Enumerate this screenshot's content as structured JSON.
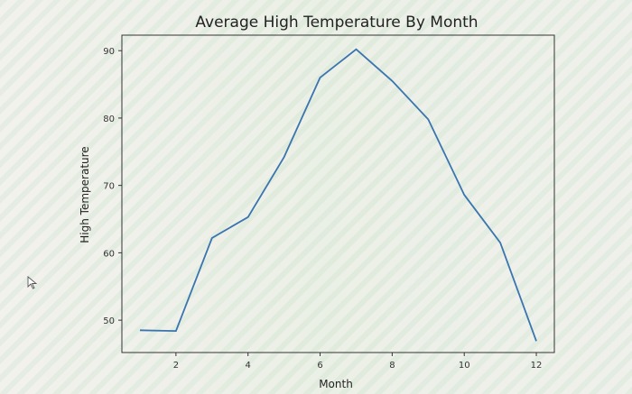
{
  "chart_data": {
    "type": "line",
    "title": "Average High Temperature By Month",
    "xlabel": "Month",
    "ylabel": "High Temperature",
    "x": [
      1,
      2,
      3,
      4,
      5,
      6,
      7,
      8,
      9,
      10,
      11,
      12
    ],
    "series": [
      {
        "values": [
          48.5,
          48.4,
          62.2,
          65.3,
          74.2,
          86.0,
          90.2,
          85.5,
          79.8,
          68.6,
          61.5,
          46.9
        ]
      }
    ],
    "xlim": [
      0.5,
      12.5
    ],
    "ylim": [
      45.2,
      92.3
    ],
    "xticks": [
      2,
      4,
      6,
      8,
      10,
      12
    ],
    "yticks": [
      50,
      60,
      70,
      80,
      90
    ],
    "grid": false,
    "line_color": "#3b75af"
  }
}
